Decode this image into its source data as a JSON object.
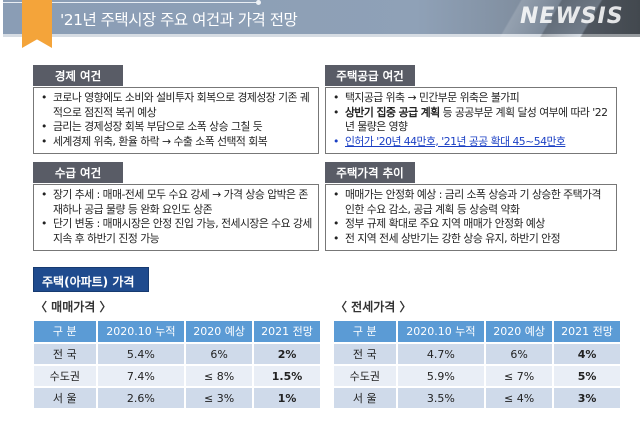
{
  "title": "'21년 주택시장 주요 여건과 가격 전망",
  "panels": {
    "economy": {
      "label": "경제 여건",
      "items": [
        "코로나 영향에도 소비와 설비투자 회복으로 경제성장 기존 궤적으로 점진적 복귀 예상",
        "금리는 경제성장 회복 부담으로 소폭 상승 그칠 듯",
        "세계경제 위축, 환율 하락 → 수출 소폭 선택적 회복"
      ]
    },
    "supply_demand": {
      "label": "수급 여건",
      "items": [
        "장기 추세 : 매매-전세 모두 수요 강세 → 가격 상승 압박은 존재하나 공급 물량 등 완화 요인도 상존",
        "단기 변동 : 매매시장은 안정 진입 가능, 전세시장은 수요 강세 지속 후 하반기 진정 가능"
      ]
    },
    "housing_supply": {
      "label": "주택공급 여건",
      "items": [
        "택지공급 위축 → 민간부문 위축은 불가피"
      ],
      "bold_item": {
        "bold": "상반기 집중 공급 계획",
        "rest": " 등 공공부문 계획 달성 여부에 따라 '22년 물량은 영향"
      },
      "highlight_item": "인허가 '20년 44만호, '21년 공공 확대 45~54만호"
    },
    "price_trend": {
      "label": "주택가격 추이",
      "items": [
        "매매가는 안정화 예상 : 금리 소폭 상승과 기 상승한 주택가격 인한 수요 감소, 공급 계획 등 상승력 약화",
        "정부 규제 확대로 주요 지역 매매가 안정화 예상",
        "전 지역 전세 상반기는 강한 상승 유지, 하반기 안정"
      ]
    }
  },
  "section_label": "주택(아파트) 가격",
  "tables": [
    {
      "label": "〈 매매가격 〉",
      "headers": [
        "구  분",
        "2020.10 누적",
        "2020 예상",
        "2021 전망"
      ],
      "rows": [
        [
          "전  국",
          "5.4%",
          "6%",
          "2%"
        ],
        [
          "수도권",
          "7.4%",
          "≤ 8%",
          "1.5%"
        ],
        [
          "서  울",
          "2.6%",
          "≤ 3%",
          "1%"
        ]
      ]
    },
    {
      "label": "〈 전세가격 〉",
      "headers": [
        "구  분",
        "2020.10 누적",
        "2020 예상",
        "2021 전망"
      ],
      "rows": [
        [
          "전  국",
          "4.7%",
          "6%",
          "4%"
        ],
        [
          "수도권",
          "5.9%",
          "≤ 7%",
          "5%"
        ],
        [
          "서  울",
          "3.5%",
          "≤ 4%",
          "3%"
        ]
      ]
    }
  ],
  "watermark": "NEWSIS",
  "colors": {
    "header_bar": "#8fa1b7",
    "ribbon": "#f4a43a",
    "tab": "#595c66",
    "section": "#1f4b8e",
    "table_header": "#5b9bd5",
    "highlight": "#1a3fc4"
  }
}
